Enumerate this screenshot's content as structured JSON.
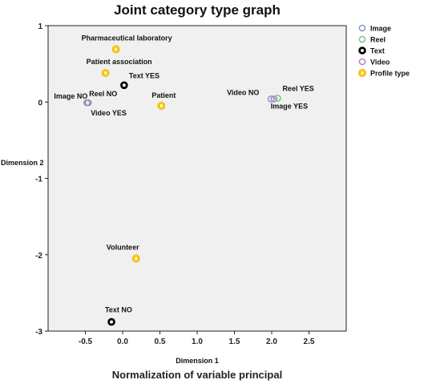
{
  "chart_data": {
    "type": "scatter",
    "title": "Joint category type graph",
    "xlabel": "Dimension 1",
    "ylabel": "Dimension 2",
    "footer": "Normalization of variable principal",
    "xlim": [
      -1.0,
      3.0
    ],
    "ylim": [
      -3.0,
      1.0
    ],
    "xticks": [
      -0.5,
      0.0,
      0.5,
      1.0,
      1.5,
      2.0,
      2.5
    ],
    "xtick_labels": [
      "-0.5",
      "0.0",
      "0.5",
      "1.0",
      "1.5",
      "2.0",
      "2.5"
    ],
    "yticks": [
      1,
      0,
      -1,
      -2,
      -3
    ],
    "ytick_labels": [
      "1",
      "0",
      "-1",
      "-2",
      "-3"
    ],
    "grid": false,
    "plot_background": "#f0f0f0",
    "legend_position": "right",
    "series": [
      {
        "name": "Image",
        "color": "#7f8fc4",
        "marker": "circle-open",
        "points": [
          {
            "x": 2.03,
            "y": 0.04,
            "label": "Image YES"
          },
          {
            "x": -0.48,
            "y": -0.01,
            "label": "Image NO"
          }
        ]
      },
      {
        "name": "Reel",
        "color": "#6fc08a",
        "marker": "circle-open",
        "points": [
          {
            "x": 2.08,
            "y": 0.05,
            "label": "Reel YES"
          },
          {
            "x": -0.47,
            "y": -0.01,
            "label": "Reel NO"
          }
        ]
      },
      {
        "name": "Text",
        "color": "#000000",
        "marker": "circle-thick",
        "points": [
          {
            "x": 0.02,
            "y": 0.22,
            "label": "Text YES"
          },
          {
            "x": -0.15,
            "y": -2.88,
            "label": "Text NO"
          }
        ]
      },
      {
        "name": "Video",
        "color": "#b07fc0",
        "marker": "circle-open",
        "points": [
          {
            "x": 1.99,
            "y": 0.04,
            "label": "Video NO"
          },
          {
            "x": -0.46,
            "y": -0.01,
            "label": "Video YES"
          }
        ]
      },
      {
        "name": "Profile type",
        "color": "#f5c518",
        "marker": "circle-filled",
        "points": [
          {
            "x": -0.09,
            "y": 0.69,
            "label": "Pharmaceutical laboratory"
          },
          {
            "x": -0.23,
            "y": 0.38,
            "label": "Patient association"
          },
          {
            "x": 0.52,
            "y": -0.05,
            "label": "Patient"
          },
          {
            "x": 0.18,
            "y": -2.05,
            "label": "Volunteer"
          }
        ]
      }
    ]
  }
}
